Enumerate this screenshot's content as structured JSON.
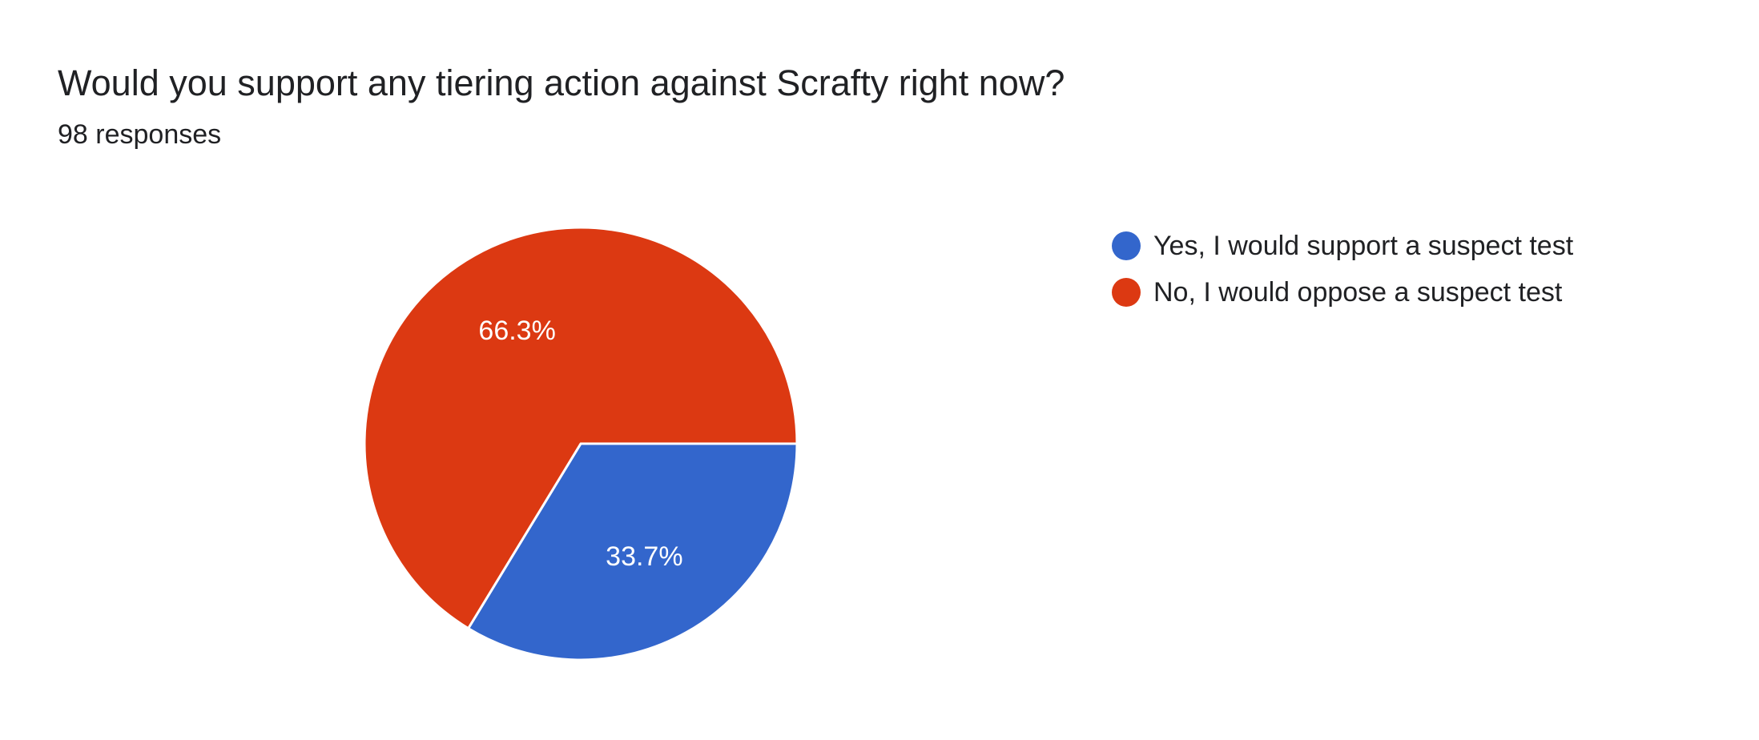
{
  "question": {
    "title": "Would you support any tiering action against Scrafty right now?",
    "responses": "98 responses"
  },
  "chart_data": {
    "type": "pie",
    "title": "Would you support any tiering action against Scrafty right now?",
    "slices": [
      {
        "label": "Yes, I would support a suspect test",
        "value": 33.7,
        "display": "33.7%",
        "color": "#3366cc"
      },
      {
        "label": "No, I would oppose a suspect test",
        "value": 66.3,
        "display": "66.3%",
        "color": "#dc3912"
      }
    ],
    "legend_position": "right"
  }
}
